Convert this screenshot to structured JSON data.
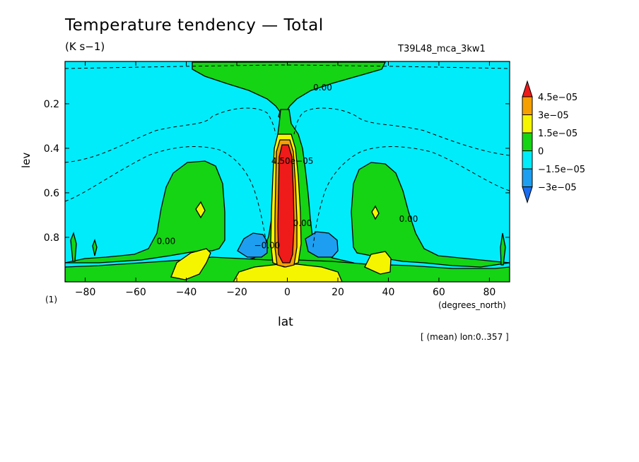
{
  "chart_data": {
    "type": "contour",
    "title": "Temperature tendency — Total",
    "units": "(K s−1)",
    "run_label": "T39L48_mca_3kw1",
    "xlabel": "lat",
    "xunits": "(degrees_north)",
    "ylabel": "lev",
    "panel_number": "(1)",
    "annotation": "[ (mean) lon:0..357 ]",
    "xlim": [
      -88,
      88
    ],
    "ylim": [
      1.0,
      0.01
    ],
    "y_inverted": true,
    "x_ticks": [
      -80,
      -60,
      -40,
      -20,
      0,
      20,
      40,
      60,
      80
    ],
    "x_tick_labels": [
      "−80",
      "−60",
      "−40",
      "−20",
      "0",
      "20",
      "40",
      "60",
      "80"
    ],
    "y_ticks": [
      0.2,
      0.4,
      0.6,
      0.8
    ],
    "y_tick_labels": [
      "0.2",
      "0.4",
      "0.6",
      "0.8"
    ],
    "contour_labels": [
      {
        "text": "0.00",
        "lat": 14,
        "lev": 0.14
      },
      {
        "text": "0.00",
        "lat": -48,
        "lev": 0.83
      },
      {
        "text": "0.00",
        "lat": 48,
        "lev": 0.73
      },
      {
        "text": "−0.00",
        "lat": -8,
        "lev": 0.85
      },
      {
        "text": "4.50e−05",
        "lat": 2,
        "lev": 0.47
      },
      {
        "text": "0.00",
        "lat": 6,
        "lev": 0.75
      }
    ],
    "colorbar": {
      "levels": [
        "4.5e−05",
        "3e−05",
        "1.5e−05",
        "0",
        "−1.5e−05",
        "−3e−05"
      ],
      "colors": [
        "#ef1a1a",
        "#f5a000",
        "#f5f500",
        "#14d414",
        "#00ecfa",
        "#1e9ef0",
        "#1a6cf0"
      ]
    },
    "field_colors": {
      "bg": "#00ecfa",
      "neg2": "#1e9ef0",
      "zero": "#14d414",
      "pos1": "#f5f500",
      "pos2": "#f5a000",
      "pos3": "#ef1a1a"
    }
  }
}
